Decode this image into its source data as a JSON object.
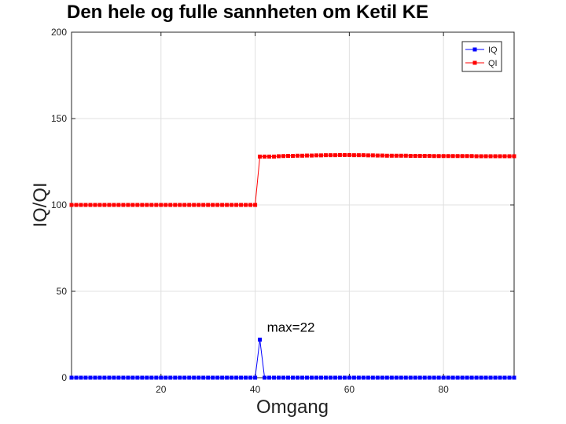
{
  "chart_data": {
    "type": "line",
    "title": "Den hele og fulle sannheten om Ketil KE",
    "xlabel": "Omgang",
    "ylabel": "IQ/QI",
    "xlim": [
      1,
      95
    ],
    "ylim": [
      0,
      200
    ],
    "xticks": [
      20,
      40,
      60,
      80
    ],
    "yticks": [
      0,
      50,
      100,
      150,
      200
    ],
    "grid": true,
    "legend_position": "top-right",
    "x": [
      1,
      2,
      3,
      4,
      5,
      6,
      7,
      8,
      9,
      10,
      11,
      12,
      13,
      14,
      15,
      16,
      17,
      18,
      19,
      20,
      21,
      22,
      23,
      24,
      25,
      26,
      27,
      28,
      29,
      30,
      31,
      32,
      33,
      34,
      35,
      36,
      37,
      38,
      39,
      40,
      41,
      42,
      43,
      44,
      45,
      46,
      47,
      48,
      49,
      50,
      51,
      52,
      53,
      54,
      55,
      56,
      57,
      58,
      59,
      60,
      61,
      62,
      63,
      64,
      65,
      66,
      67,
      68,
      69,
      70,
      71,
      72,
      73,
      74,
      75,
      76,
      77,
      78,
      79,
      80,
      81,
      82,
      83,
      84,
      85,
      86,
      87,
      88,
      89,
      90,
      91,
      92,
      93,
      94,
      95
    ],
    "series": [
      {
        "name": "IQ",
        "color": "#0000ff",
        "marker": "square",
        "values": [
          0,
          0,
          0,
          0,
          0,
          0,
          0,
          0,
          0,
          0,
          0,
          0,
          0,
          0,
          0,
          0,
          0,
          0,
          0,
          0,
          0,
          0,
          0,
          0,
          0,
          0,
          0,
          0,
          0,
          0,
          0,
          0,
          0,
          0,
          0,
          0,
          0,
          0,
          0,
          0,
          22,
          0,
          0,
          0,
          0,
          0,
          0,
          0,
          0,
          0,
          0,
          0,
          0,
          0,
          0,
          0,
          0,
          0,
          0,
          0,
          0,
          0,
          0,
          0,
          0,
          0,
          0,
          0,
          0,
          0,
          0,
          0,
          0,
          0,
          0,
          0,
          0,
          0,
          0,
          0,
          0,
          0,
          0,
          0,
          0,
          0,
          0,
          0,
          0,
          0,
          0,
          0,
          0,
          0,
          0
        ]
      },
      {
        "name": "QI",
        "color": "#ff0000",
        "marker": "square",
        "values": [
          100,
          100,
          100,
          100,
          100,
          100,
          100,
          100,
          100,
          100,
          100,
          100,
          100,
          100,
          100,
          100,
          100,
          100,
          100,
          100,
          100,
          100,
          100,
          100,
          100,
          100,
          100,
          100,
          100,
          100,
          100,
          100,
          100,
          100,
          100,
          100,
          100,
          100,
          100,
          100,
          128,
          128,
          128,
          128,
          128.2,
          128.3,
          128.4,
          128.4,
          128.5,
          128.5,
          128.6,
          128.6,
          128.7,
          128.7,
          128.8,
          128.8,
          128.8,
          128.9,
          128.9,
          128.9,
          128.8,
          128.8,
          128.8,
          128.7,
          128.7,
          128.6,
          128.6,
          128.5,
          128.5,
          128.5,
          128.5,
          128.5,
          128.4,
          128.4,
          128.4,
          128.4,
          128.4,
          128.3,
          128.3,
          128.3,
          128.3,
          128.3,
          128.3,
          128.3,
          128.3,
          128.3,
          128.2,
          128.2,
          128.2,
          128.2,
          128.2,
          128.2,
          128.2,
          128.2,
          128.2
        ]
      }
    ],
    "annotations": [
      {
        "text": "max=22",
        "x": 42,
        "y": 22
      }
    ]
  }
}
